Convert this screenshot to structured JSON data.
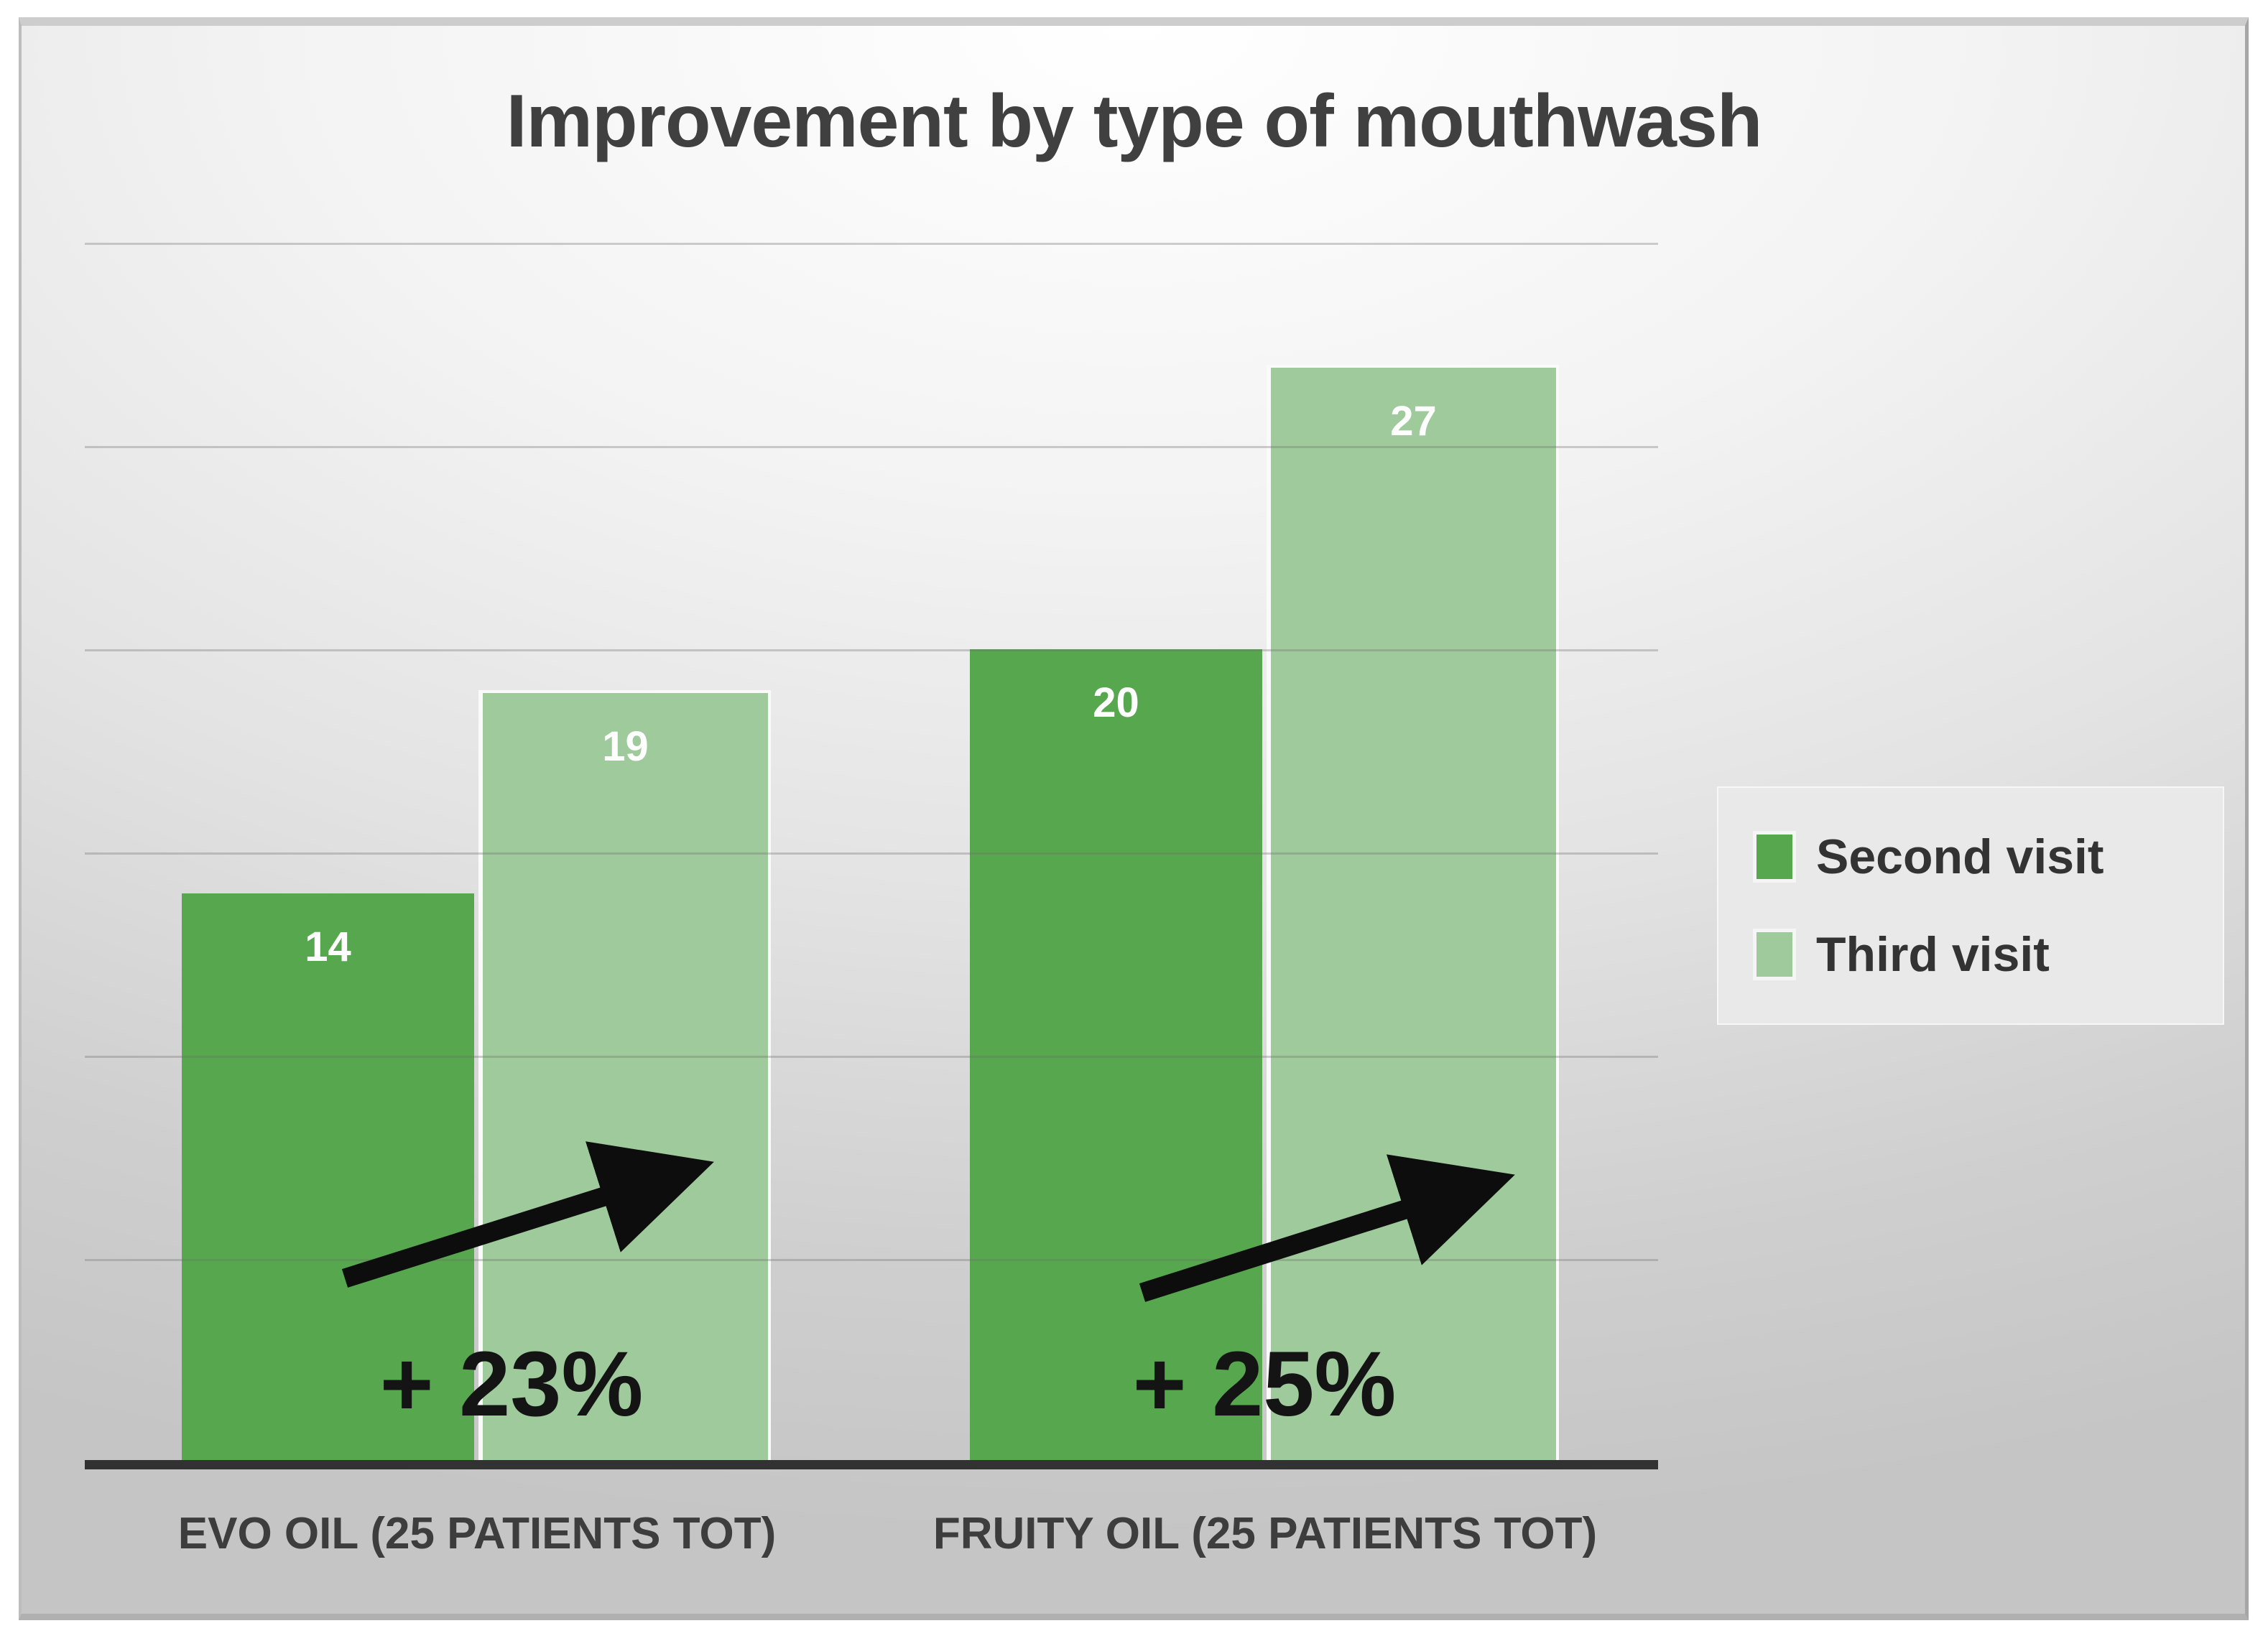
{
  "chart_data": {
    "type": "bar",
    "title": "Improvement by type of mouthwash",
    "categories": [
      "EVO OIL (25 PATIENTS TOT)",
      "FRUITY OIL (25 PATIENTS TOT)"
    ],
    "series": [
      {
        "name": "Second visit",
        "color": "#57a74f",
        "values": [
          14,
          20
        ]
      },
      {
        "name": "Third visit",
        "color": "#9fca9c",
        "values": [
          19,
          27
        ]
      }
    ],
    "value_labels_visible": true,
    "annotations": [
      {
        "label": "+ 23%",
        "category_index": 0,
        "type": "growth-arrow"
      },
      {
        "label": "+ 25%",
        "category_index": 1,
        "type": "growth-arrow"
      }
    ],
    "ylim": [
      0,
      35
    ],
    "gridline_step": 5,
    "grid": true,
    "y_axis_tick_labels_visible": false,
    "legend_position": "middle-right"
  },
  "colors": {
    "second_visit_bar": "#57a74f",
    "third_visit_bar": "#9fca9c",
    "value_label_text": "#ffffff",
    "title_text": "#404040",
    "category_label_text": "#3d3d3d",
    "legend_text": "#333333",
    "annotation_text": "#141414",
    "arrow": "#0d0d0d",
    "axis_line": "#323232"
  }
}
